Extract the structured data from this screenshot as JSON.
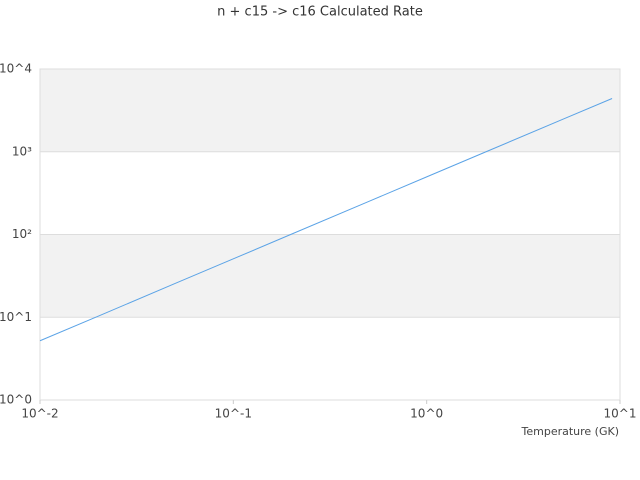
{
  "chart_data": {
    "type": "line",
    "title": "n + c15 -> c16 Calculated Rate",
    "x_label": "Temperature (GK)",
    "x": [
      0.01,
      0.02,
      0.05,
      0.1,
      0.2,
      0.5,
      1,
      2,
      5,
      9.1
    ],
    "series": [
      {
        "color": "#5ba3e6",
        "values": [
          5.2,
          10.3,
          25.6,
          50.8,
          101,
          250,
          497,
          986,
          2440,
          4400
        ]
      }
    ],
    "xlog": true,
    "ylog": true,
    "xlim": [
      0.01,
      10
    ],
    "ylim": [
      1,
      10000
    ],
    "xticks": [
      {
        "value": 0.01,
        "label": "10^-2"
      },
      {
        "value": 0.1,
        "label": "10^-1"
      },
      {
        "value": 1,
        "label": "10^0"
      },
      {
        "value": 10,
        "label": "10^1"
      }
    ],
    "yticks": [
      {
        "value": 1,
        "label": "10^0"
      },
      {
        "value": 10,
        "label": "10^1"
      },
      {
        "value": 100,
        "label": "10²"
      },
      {
        "value": 1000,
        "label": "10³"
      },
      {
        "value": 10000,
        "label": "10^4"
      }
    ],
    "grid": true
  }
}
